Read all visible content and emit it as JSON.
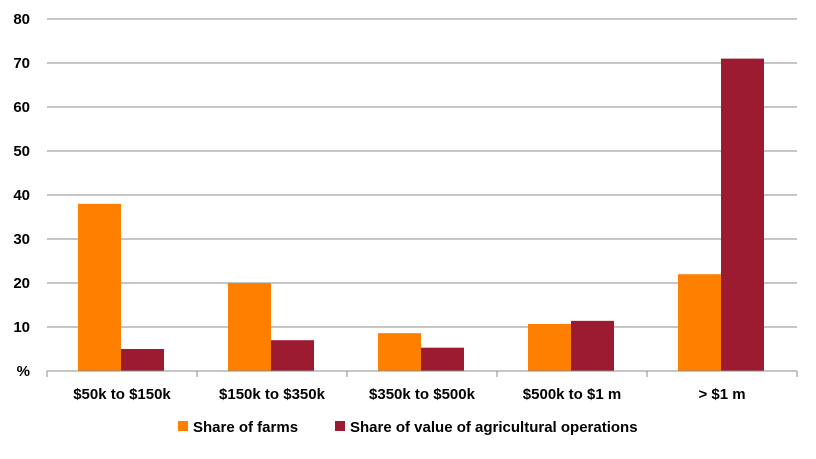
{
  "chart_data": {
    "type": "bar",
    "title": "",
    "xlabel": "",
    "ylabel": "",
    "categories": [
      "$50k to $150k",
      "$150k to $350k",
      "$350k to $500k",
      "$500k to $1 m",
      "> $1 m"
    ],
    "series": [
      {
        "name": "Share of farms",
        "color": "#ff7f00",
        "values": [
          38,
          20,
          8.6,
          10.7,
          22
        ]
      },
      {
        "name": "Share of value of agricultural operations",
        "color": "#9c1b30",
        "values": [
          5,
          7,
          5.3,
          11.4,
          71
        ]
      }
    ],
    "ylim": [
      0,
      80
    ],
    "y_ticks": [
      0,
      10,
      20,
      30,
      40,
      50,
      60,
      70,
      80
    ],
    "y_tick_labels": [
      "%",
      "10",
      "20",
      "30",
      "40",
      "50",
      "60",
      "70",
      "80"
    ],
    "grid": true,
    "legend_position": "bottom"
  }
}
